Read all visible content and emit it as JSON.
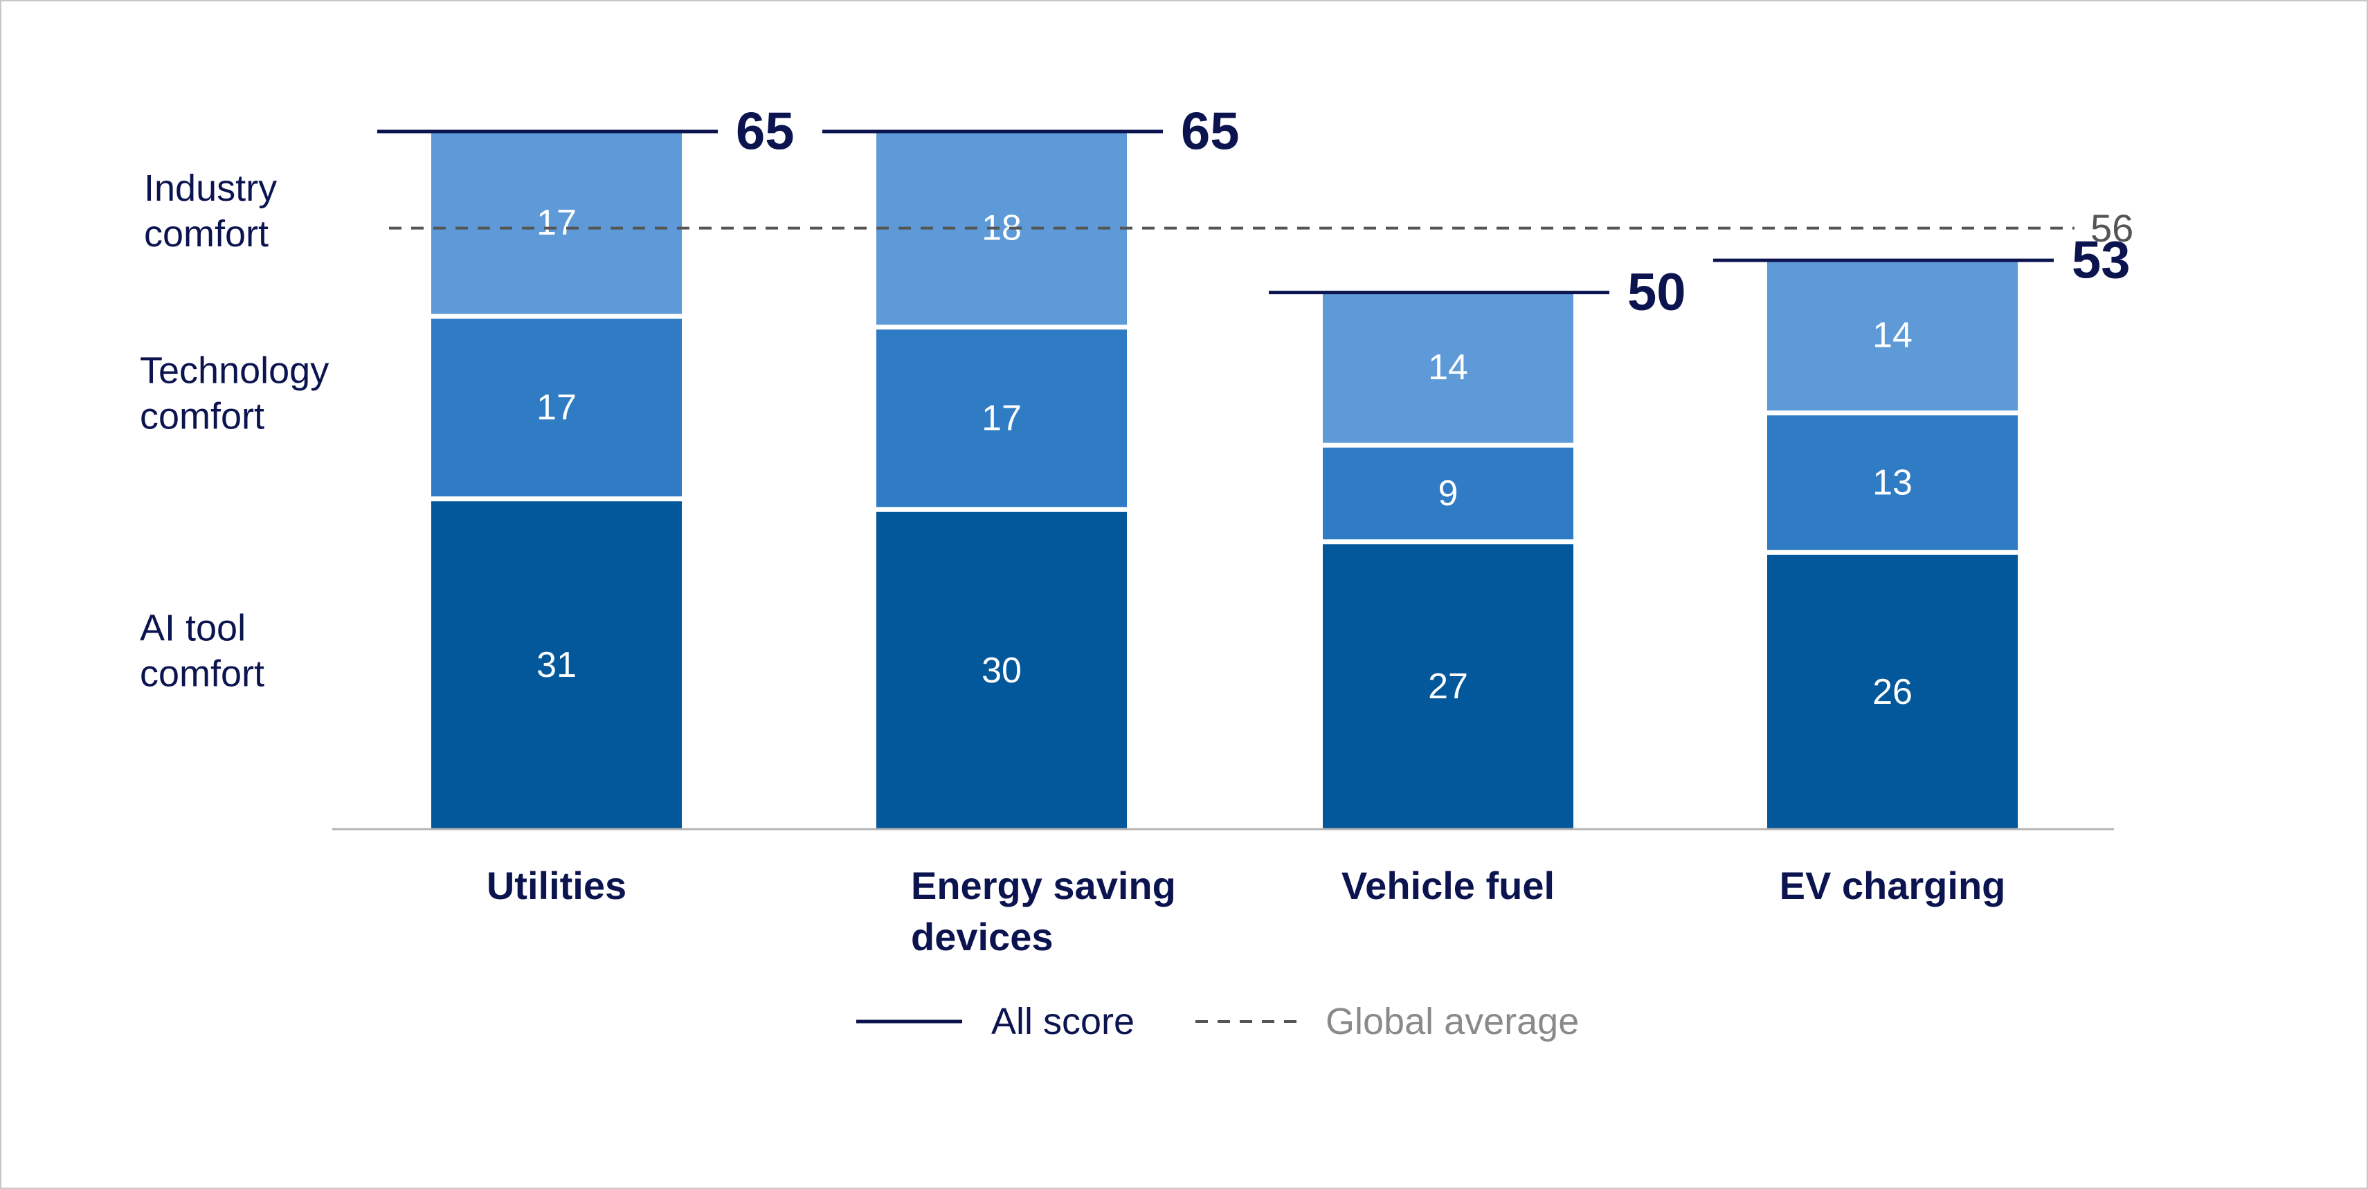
{
  "chart_data": {
    "type": "bar",
    "stacked": true,
    "categories": [
      [
        "Utilities"
      ],
      [
        "Energy saving",
        "devices"
      ],
      [
        "Vehicle fuel"
      ],
      [
        "EV charging"
      ]
    ],
    "series": [
      {
        "name": [
          "AI tool",
          "comfort"
        ],
        "values": [
          31,
          30,
          27,
          26
        ],
        "color": "#03589c"
      },
      {
        "name": [
          "Technology",
          "comfort"
        ],
        "values": [
          17,
          17,
          9,
          13
        ],
        "color": "#2f7bc4"
      },
      {
        "name": [
          "Industry",
          "comfort"
        ],
        "values": [
          17,
          18,
          14,
          14
        ],
        "color": "#5e9ad8"
      }
    ],
    "totals": [
      65,
      65,
      50,
      53
    ],
    "global_average": 56,
    "legend": [
      {
        "label": "All score",
        "style": "solid",
        "color": "#0c1450"
      },
      {
        "label": "Global average",
        "style": "dashed",
        "color": "#555555"
      }
    ],
    "colors": {
      "total_line": "#0c1450",
      "average_line": "#555555",
      "axis": "#b5b5b5",
      "legend_avg_text": "#8a8a8a"
    },
    "ylim": [
      0,
      65
    ]
  }
}
